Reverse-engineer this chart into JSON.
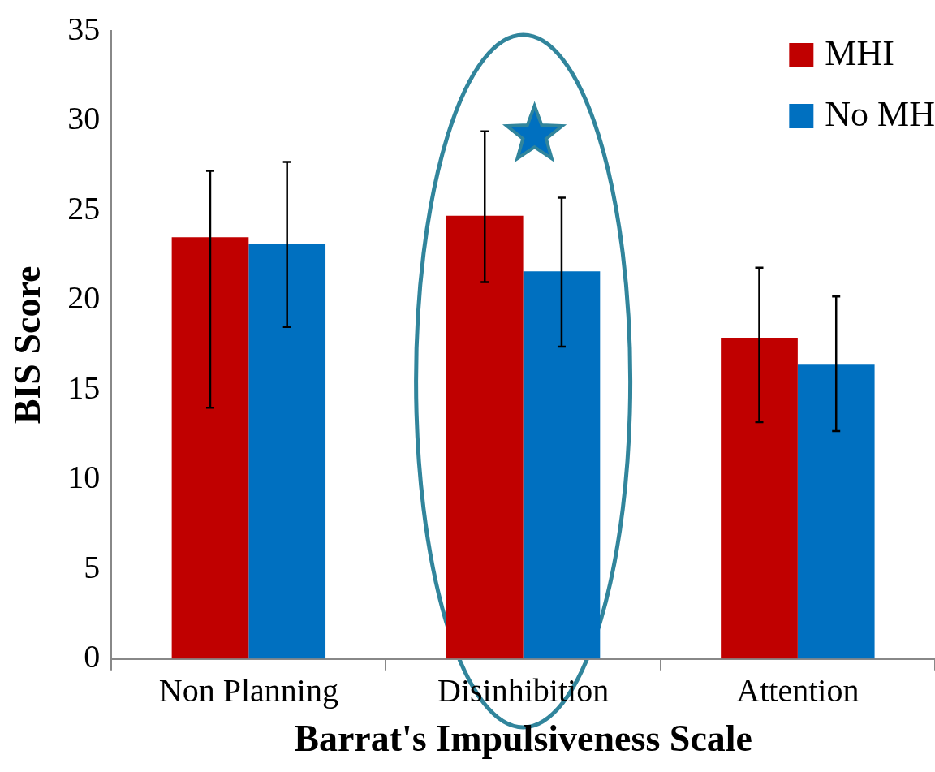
{
  "chart_data": {
    "type": "bar",
    "xlabel": "Barrat's Impulsiveness Scale",
    "ylabel": "BIS Score",
    "categories": [
      "Non Planning",
      "Disinhibition",
      "Attention"
    ],
    "series": [
      {
        "name": "MHI",
        "color": "#c00000",
        "values": [
          23.5,
          24.7,
          17.9
        ],
        "errors": [
          [
            14.0,
            27.2
          ],
          [
            21.0,
            29.4
          ],
          [
            13.2,
            21.8
          ]
        ]
      },
      {
        "name": "No MH",
        "color": "#0070c0",
        "values": [
          23.1,
          21.6,
          16.4
        ],
        "errors": [
          [
            18.5,
            27.7
          ],
          [
            17.4,
            25.7
          ],
          [
            12.7,
            20.2
          ]
        ]
      }
    ],
    "ylim": [
      0,
      35
    ],
    "yticks": [
      0,
      5,
      10,
      15,
      20,
      25,
      30,
      35
    ],
    "grid": false,
    "legend": "top right"
  }
}
